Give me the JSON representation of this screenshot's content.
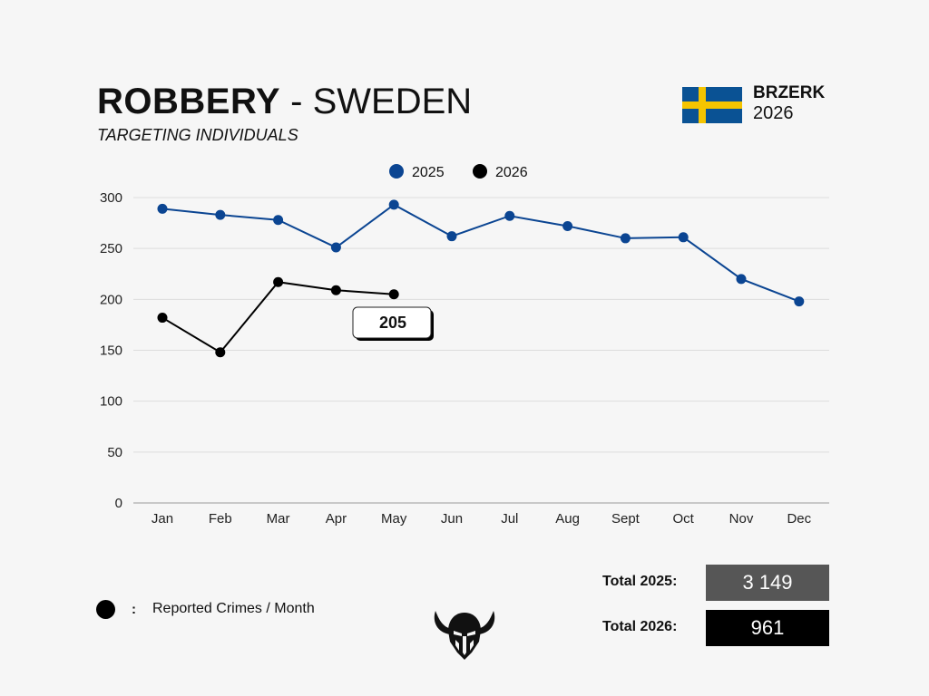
{
  "header": {
    "title_strong": "ROBBERY",
    "title_rest": " - SWEDEN",
    "subtitle": "TARGETING INDIVIDUALS",
    "brand_name": "BRZERK",
    "brand_year": "2026",
    "flag_icon": "sweden-flag-icon"
  },
  "colors": {
    "series_2025": "#0b4592",
    "series_2026": "#000000",
    "grid": "#dddddd",
    "flag_blue": "#0a5294",
    "flag_yellow": "#f5c400"
  },
  "chart_data": {
    "type": "line",
    "categories": [
      "Jan",
      "Feb",
      "Mar",
      "Apr",
      "May",
      "Jun",
      "Jul",
      "Aug",
      "Sept",
      "Oct",
      "Nov",
      "Dec"
    ],
    "series": [
      {
        "name": "2025",
        "values": [
          289,
          283,
          278,
          251,
          293,
          262,
          282,
          272,
          260,
          261,
          220,
          198
        ]
      },
      {
        "name": "2026",
        "values": [
          182,
          148,
          217,
          209,
          205,
          null,
          null,
          null,
          null,
          null,
          null,
          null
        ]
      }
    ],
    "ylim": [
      0,
      300
    ],
    "yticks": [
      0,
      50,
      100,
      150,
      200,
      250,
      300
    ],
    "grid": true,
    "legend_position": "top-center",
    "callout": {
      "series": "2026",
      "category": "May",
      "label": "205"
    }
  },
  "footer": {
    "legend_colon": ":",
    "legend_text": "Reported Crimes / Month",
    "total_2025_label": "Total 2025:",
    "total_2025_value": "3 149",
    "total_2025_color": "#565656",
    "total_2026_label": "Total 2026:",
    "total_2026_value": "961",
    "total_2026_color": "#000000",
    "logo_icon": "viking-helmet-logo-icon"
  }
}
